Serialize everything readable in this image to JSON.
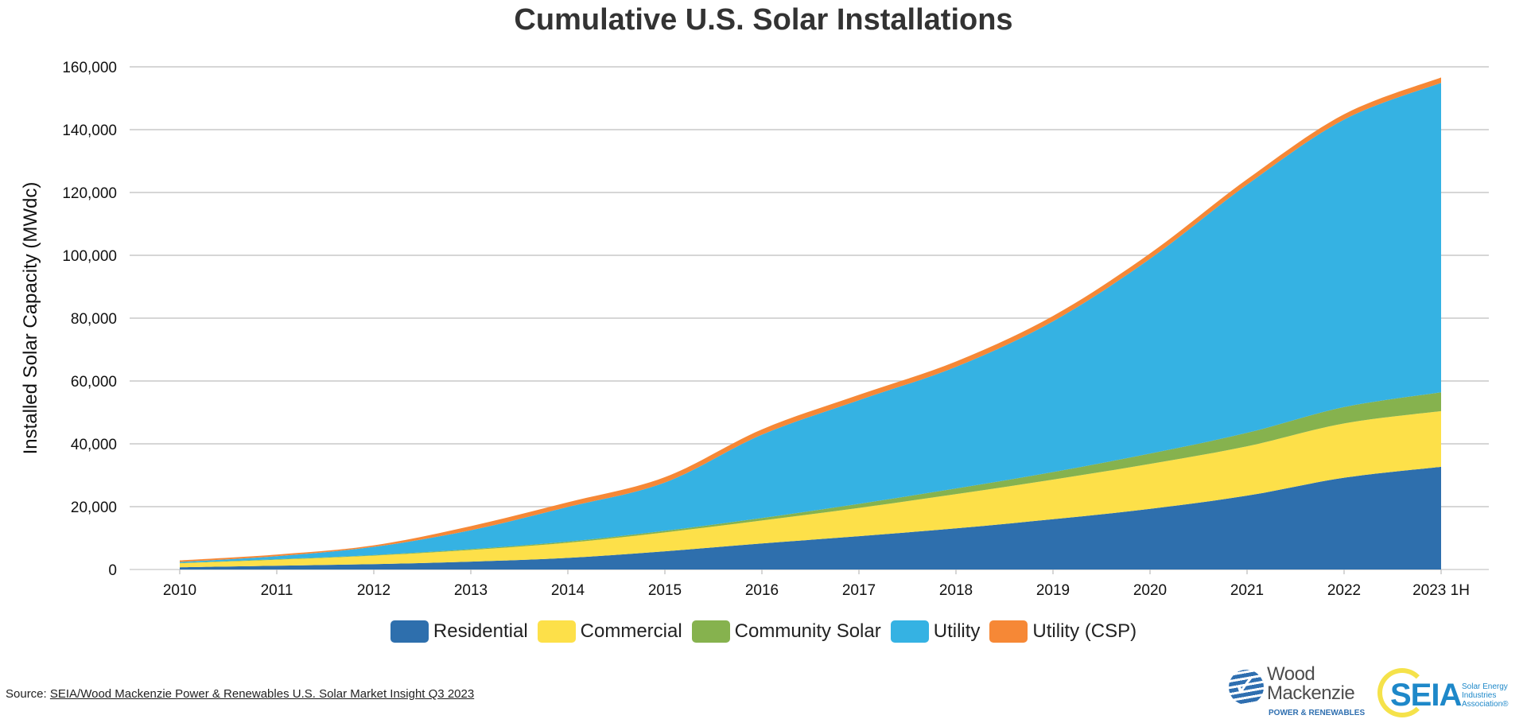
{
  "chart_data": {
    "type": "area",
    "stacked": true,
    "title": "Cumulative U.S. Solar Installations",
    "ylabel": "Installed Solar Capacity (MWdc)",
    "xlabel": "",
    "categories": [
      "2010",
      "2011",
      "2012",
      "2013",
      "2014",
      "2015",
      "2016",
      "2017",
      "2018",
      "2019",
      "2020",
      "2021",
      "2022",
      "2023 1H"
    ],
    "ylim": [
      0,
      160000
    ],
    "yticks": [
      0,
      20000,
      40000,
      60000,
      80000,
      100000,
      120000,
      140000,
      160000
    ],
    "ytick_labels": [
      "0",
      "20,000",
      "40,000",
      "60,000",
      "80,000",
      "100,000",
      "120,000",
      "140,000",
      "160,000"
    ],
    "grid": true,
    "legend_position": "bottom",
    "series": [
      {
        "name": "Residential",
        "color": "#2e6fad",
        "values": [
          700,
          1200,
          1700,
          2500,
          3700,
          5800,
          8300,
          10600,
          13100,
          16000,
          19300,
          23500,
          29200,
          32700
        ]
      },
      {
        "name": "Commercial",
        "color": "#fde049",
        "values": [
          1300,
          1900,
          2700,
          3700,
          4800,
          6000,
          7300,
          9000,
          10900,
          12600,
          14300,
          15700,
          17300,
          17700
        ]
      },
      {
        "name": "Community Solar",
        "color": "#86b24e",
        "values": [
          100,
          150,
          200,
          300,
          400,
          500,
          800,
          1300,
          1800,
          2400,
          3300,
          4300,
          5200,
          6000
        ]
      },
      {
        "name": "Utility",
        "color": "#35b2e3",
        "values": [
          300,
          1000,
          2600,
          6000,
          11000,
          15400,
          26500,
          33000,
          38700,
          48000,
          62000,
          79000,
          91500,
          98500
        ]
      },
      {
        "name": "Utility (CSP)",
        "color": "#f68836",
        "values": [
          500,
          500,
          500,
          1300,
          1500,
          1700,
          1700,
          1700,
          1700,
          1700,
          1700,
          1700,
          1700,
          1700
        ]
      }
    ]
  },
  "source": {
    "prefix": "Source: ",
    "link_text": "SEIA/Wood Mackenzie Power & Renewables U.S. Solar Market Insight Q3 2023"
  },
  "logos": {
    "wood_mackenzie": {
      "line1": "Wood",
      "line2": "Mackenzie",
      "sub": "POWER & RENEWABLES"
    },
    "seia": {
      "mark": "SEIA",
      "sub": "Solar Energy Industries Association®"
    }
  }
}
